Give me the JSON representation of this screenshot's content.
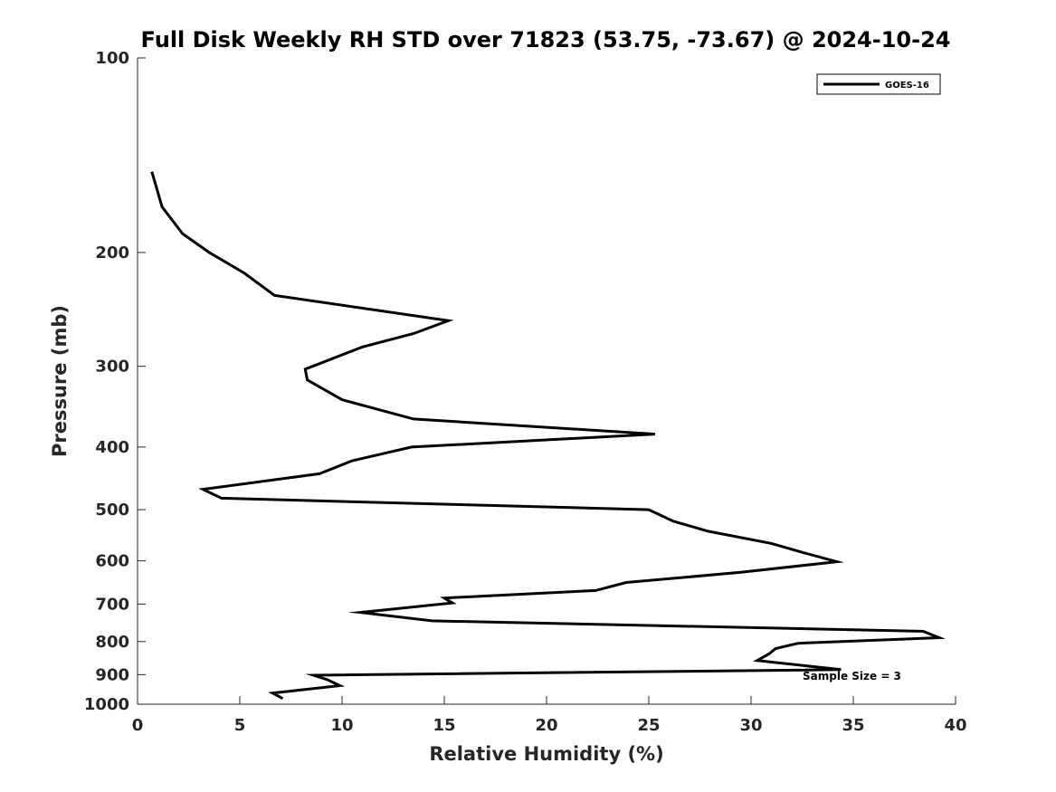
{
  "chart_data": {
    "type": "line",
    "title": "Full Disk Weekly RH STD over 71823 (53.75, -73.67) @ 2024-10-24",
    "xlabel": "Relative Humidity (%)",
    "ylabel": "Pressure (mb)",
    "xlim": [
      0,
      40
    ],
    "ylim": [
      100,
      1000
    ],
    "yscale": "log",
    "reverse_y": true,
    "xticks": [
      0,
      5,
      10,
      15,
      20,
      25,
      30,
      35,
      40
    ],
    "yticks": [
      100,
      200,
      300,
      400,
      500,
      600,
      700,
      800,
      900,
      1000
    ],
    "grid": false,
    "legend_position": "top-right",
    "annotation": "Sample Size = 3",
    "series": [
      {
        "name": "GOES-16",
        "color": "#000000",
        "points": [
          [
            0.7,
            150
          ],
          [
            1.2,
            170
          ],
          [
            2.2,
            187
          ],
          [
            3.5,
            200
          ],
          [
            5.2,
            215
          ],
          [
            6.7,
            233
          ],
          [
            15.2,
            255
          ],
          [
            13.5,
            267
          ],
          [
            11.0,
            280
          ],
          [
            8.2,
            303
          ],
          [
            8.3,
            315
          ],
          [
            10.0,
            338
          ],
          [
            13.5,
            362
          ],
          [
            25.3,
            382
          ],
          [
            13.4,
            400
          ],
          [
            10.5,
            420
          ],
          [
            8.9,
            440
          ],
          [
            3.2,
            465
          ],
          [
            4.1,
            480
          ],
          [
            25.0,
            500
          ],
          [
            26.2,
            521
          ],
          [
            27.9,
            540
          ],
          [
            31.0,
            564
          ],
          [
            32.5,
            582
          ],
          [
            34.2,
            602
          ],
          [
            29.5,
            625
          ],
          [
            23.9,
            648
          ],
          [
            22.4,
            667
          ],
          [
            15.0,
            685
          ],
          [
            15.4,
            697
          ],
          [
            10.9,
            721
          ],
          [
            14.4,
            743
          ],
          [
            38.4,
            771
          ],
          [
            39.2,
            789
          ],
          [
            32.3,
            805
          ],
          [
            31.2,
            820
          ],
          [
            30.9,
            835
          ],
          [
            30.3,
            856
          ],
          [
            34.4,
            884
          ],
          [
            8.6,
            902
          ],
          [
            9.3,
            917
          ],
          [
            9.9,
            936
          ],
          [
            6.6,
            961
          ],
          [
            7.1,
            980
          ]
        ]
      }
    ]
  }
}
